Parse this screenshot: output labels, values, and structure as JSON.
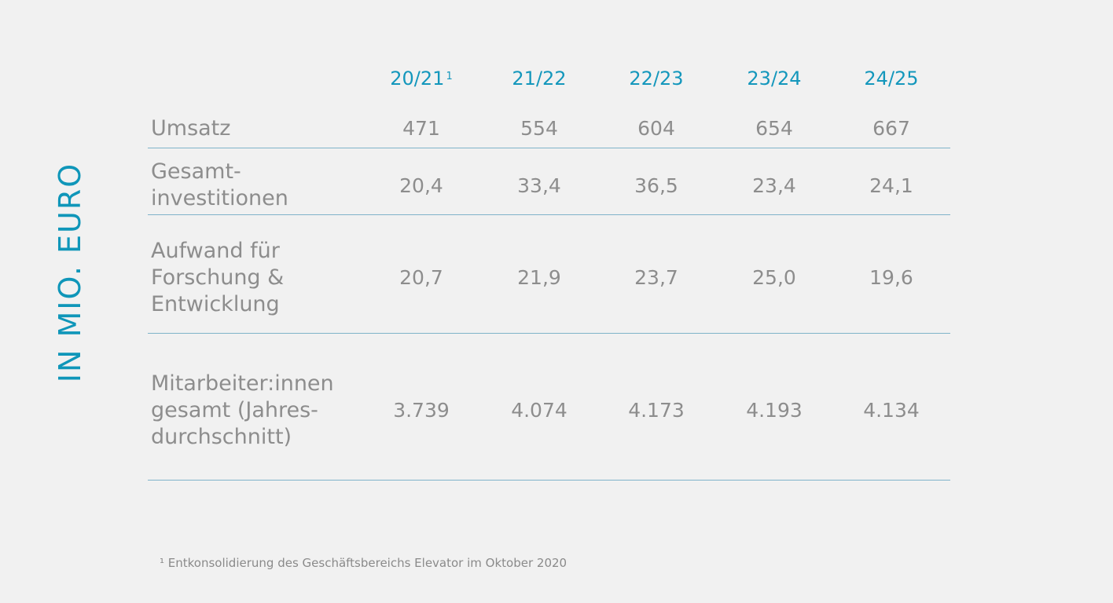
{
  "side_label": "IN MIO. EURO",
  "columns": [
    {
      "label": "20/21",
      "note": "1"
    },
    {
      "label": "21/22",
      "note": ""
    },
    {
      "label": "22/23",
      "note": ""
    },
    {
      "label": "23/24",
      "note": ""
    },
    {
      "label": "24/25",
      "note": ""
    }
  ],
  "rows": [
    {
      "label": "Umsatz",
      "values": [
        "471",
        "554",
        "604",
        "654",
        "667"
      ]
    },
    {
      "label": "Gesamt-\ninvestitionen",
      "values": [
        "20,4",
        "33,4",
        "36,5",
        "23,4",
        "24,1"
      ]
    },
    {
      "label": "Aufwand für\nForschung &\nEntwicklung",
      "values": [
        "20,7",
        "21,9",
        "23,7",
        "25,0",
        "19,6"
      ]
    },
    {
      "label": "Mitarbeiter:innen\ngesamt (Jahres-\ndurchschnitt)",
      "values": [
        "3.739",
        "4.074",
        "4.173",
        "4.193",
        "4.134"
      ]
    }
  ],
  "footnote": "¹ Entkonsolidierung des Geschäftsbereichs Elevator im Oktober 2020",
  "colors": {
    "accent": "#1497bc",
    "text": "#8d8d8d",
    "rule": "#7fb3c9",
    "background": "#f1f1f1"
  }
}
